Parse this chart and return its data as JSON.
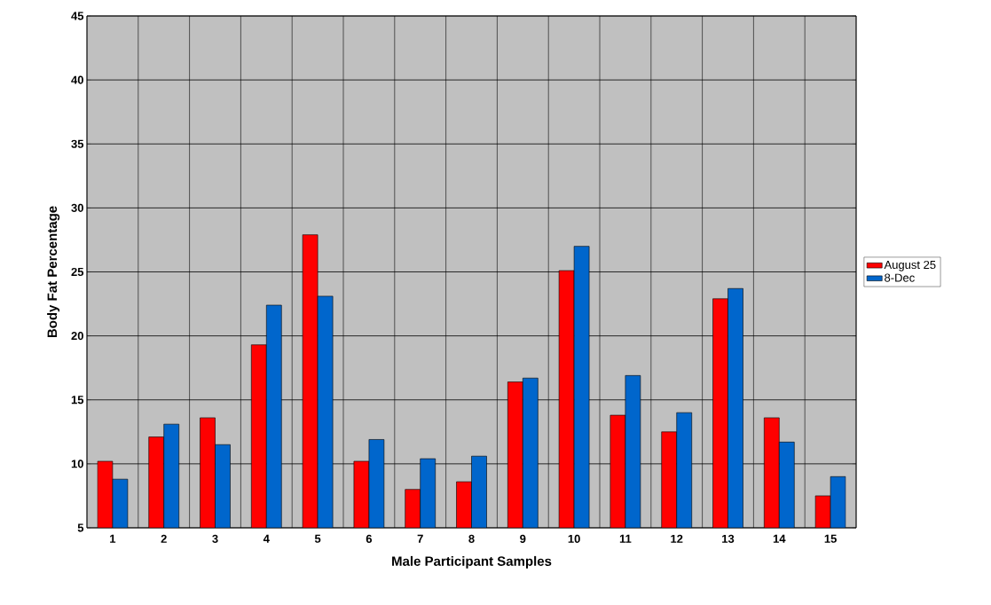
{
  "chart_data": {
    "type": "bar",
    "xlabel": "Male Participant Samples",
    "ylabel": "Body Fat Percentage",
    "categories": [
      "1",
      "2",
      "3",
      "4",
      "5",
      "6",
      "7",
      "8",
      "9",
      "10",
      "11",
      "12",
      "13",
      "14",
      "15"
    ],
    "series": [
      {
        "name": "August 25",
        "color": "#ff0000",
        "values": [
          10.2,
          12.1,
          13.6,
          19.3,
          27.9,
          10.2,
          8.0,
          8.6,
          16.4,
          25.1,
          13.8,
          12.5,
          22.9,
          13.6,
          7.5
        ]
      },
      {
        "name": "8-Dec",
        "color": "#0066cc",
        "values": [
          8.8,
          13.1,
          11.5,
          22.4,
          23.1,
          11.9,
          10.4,
          10.6,
          16.7,
          27.0,
          16.9,
          14.0,
          23.7,
          11.7,
          9.0
        ]
      }
    ],
    "ylim": [
      5,
      45
    ],
    "yticks": [
      5,
      10,
      15,
      20,
      25,
      30,
      35,
      40,
      45
    ],
    "grid": true,
    "legend": "right"
  }
}
